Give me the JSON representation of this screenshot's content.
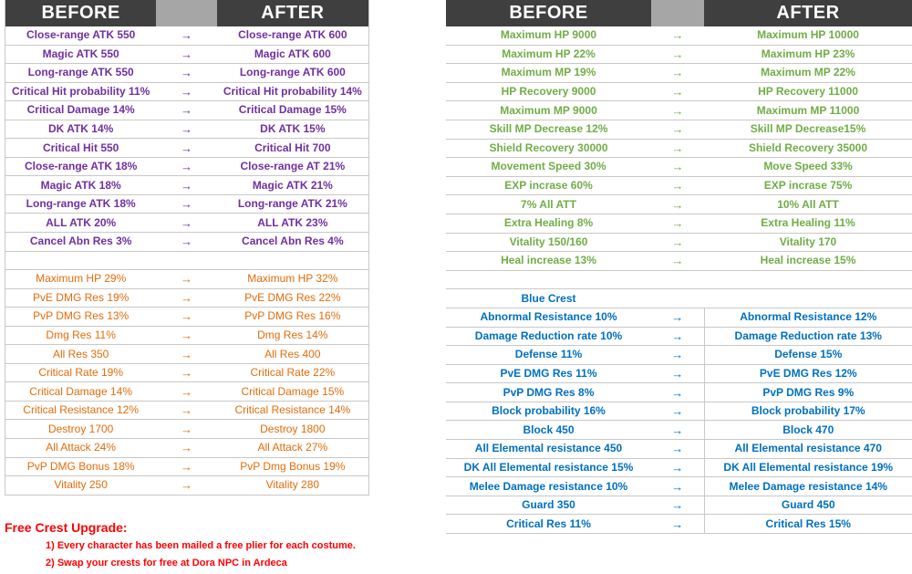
{
  "headers": {
    "before": "BEFORE",
    "after": "AFTER"
  },
  "arrow": "→",
  "left": {
    "purple": [
      [
        "Close-range ATK 550",
        "Close-range ATK 600"
      ],
      [
        "Magic ATK 550",
        "Magic ATK 600"
      ],
      [
        "Long-range ATK 550",
        "Long-range ATK 600"
      ],
      [
        "Critical Hit probability 11%",
        "Critical Hit probability 14%"
      ],
      [
        "Critical Damage 14%",
        "Critical Damage 15%"
      ],
      [
        "DK ATK 14%",
        "DK ATK 15%"
      ],
      [
        "Critical Hit 550",
        "Critical Hit 700"
      ],
      [
        "Close-range ATK 18%",
        "Close-range AT 21%"
      ],
      [
        "Magic ATK 18%",
        "Magic ATK 21%"
      ],
      [
        "Long-range ATK 18%",
        "Long-range ATK 21%"
      ],
      [
        "ALL ATK 20%",
        "ALL ATK  23%"
      ],
      [
        "Cancel Abn Res 3%",
        "Cancel Abn Res 4%"
      ]
    ],
    "orange": [
      [
        "Maximum HP 29%",
        "Maximum HP 32%"
      ],
      [
        "PvE DMG Res 19%",
        "PvE DMG Res 22%"
      ],
      [
        "PvP DMG Res 13%",
        "PvP DMG Res 16%"
      ],
      [
        "Dmg Res 11%",
        "Dmg Res 14%"
      ],
      [
        "All Res 350",
        "All Res 400"
      ],
      [
        "Critical Rate 19%",
        "Critical Rate 22%"
      ],
      [
        "Critical Damage 14%",
        "Critical Damage 15%"
      ],
      [
        "Critical Resistance 12%",
        "Critical Resistance 14%"
      ],
      [
        "Destroy 1700",
        "Destroy 1800"
      ],
      [
        "All Attack 24%",
        "All Attack 27%"
      ],
      [
        "PvP DMG Bonus 18%",
        "PvP Dmg Bonus 19%"
      ],
      [
        "Vitality 250",
        "Vitality 280"
      ]
    ]
  },
  "right": {
    "green": [
      [
        "Maximum HP 9000",
        "Maximum HP 10000"
      ],
      [
        "Maximum HP 22%",
        "Maximum HP 23%"
      ],
      [
        "Maximum MP 19%",
        "Maximum MP 22%"
      ],
      [
        "HP Recovery 9000",
        "HP Recovery 11000"
      ],
      [
        "Maximum MP 9000",
        "Maximum MP 11000"
      ],
      [
        "Skill MP Decrease 12%",
        "Skill MP Decrease15%"
      ],
      [
        "Shield Recovery 30000",
        "Shield Recovery 35000"
      ],
      [
        "Movement Speed 30%",
        "Move Speed 33%"
      ],
      [
        "EXP incrase 60%",
        "EXP incrase 75%"
      ],
      [
        "7% All ATT",
        "10% All ATT"
      ],
      [
        "Extra Healing 8%",
        "Extra Healing 11%"
      ],
      [
        "Vitality 150/160",
        "Vitality 170"
      ],
      [
        "Heal increase 13%",
        "Heal increase 15%"
      ]
    ],
    "blue_title": "Blue Crest",
    "blue": [
      [
        "Abnormal Resistance 10%",
        "Abnormal Resistance 12%"
      ],
      [
        "Damage Reduction rate 10%",
        "Damage Reduction rate 13%"
      ],
      [
        "Defense 11%",
        "Defense 15%"
      ],
      [
        "PvE DMG Res 11%",
        "PvE DMG Res 12%"
      ],
      [
        "PvP DMG Res 8%",
        "PvP DMG Res 9%"
      ],
      [
        "Block probability 16%",
        "Block probability 17%"
      ],
      [
        "Block 450",
        "Block 470"
      ],
      [
        "All Elemental resistance 450",
        "All Elemental resistance 470"
      ],
      [
        "DK All Elemental resistance 15%",
        "DK All Elemental resistance 19%"
      ],
      [
        "Melee Damage resistance 10%",
        "Melee Damage resistance 14%"
      ],
      [
        "Guard 350",
        "Guard 450"
      ],
      [
        "Critical Res 11%",
        "Critical Res 15%"
      ]
    ]
  },
  "free_crest": {
    "title": "Free Crest Upgrade:",
    "items": [
      "1) Every character has been mailed a free plier for each costume.",
      "2) Swap your crests for free at Dora NPC in Ardeca"
    ]
  },
  "colors": {
    "header": "#3f3f3f",
    "header_mid": "#a6a6a6",
    "purple": "#7030a0",
    "orange": "#e46c0a",
    "green": "#70ad47",
    "blue": "#0070c0",
    "red": "#ff0000"
  }
}
